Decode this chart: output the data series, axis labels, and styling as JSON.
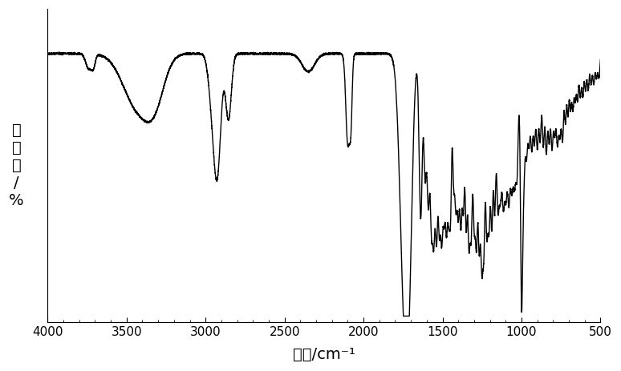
{
  "xlabel": "波数/cm⁻¹",
  "ylabel": "透\n过\n率\n/\n%",
  "xlim": [
    4000,
    500
  ],
  "xticks": [
    4000,
    3500,
    3000,
    2500,
    2000,
    1500,
    1000,
    500
  ],
  "background_color": "#ffffff",
  "line_color": "#000000",
  "line_width": 1.0
}
